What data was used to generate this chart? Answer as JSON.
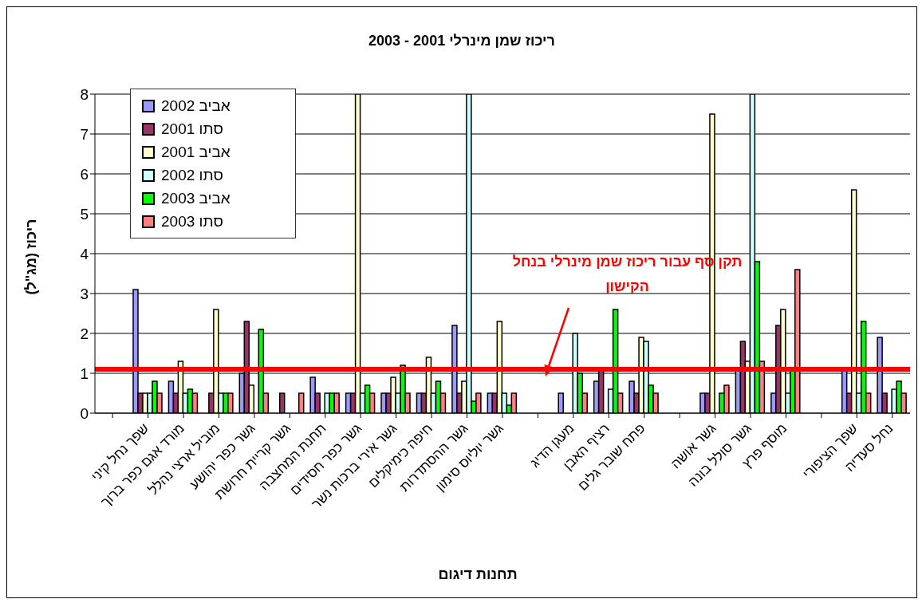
{
  "chart_data": {
    "type": "bar",
    "title": "ריכוז שמן מינרלי 2001 - 2003",
    "xlabel": "תחנות דיגום",
    "ylabel": "ריכוז (מג\"ל)",
    "categories": [
      null,
      "שפך נחל קיני",
      "מורד אגם כפר ברוך",
      "מוביל ארצי נהלל",
      "גשר כפר יהושע",
      "גשר קריית חרושת",
      "תחנת המחצבה",
      "גשר כפר חסידים",
      "גשר אירי ברכות נשר",
      "חיפה כימיקלים",
      "גשר ההסתדרות",
      "גשר יוליוס סימון",
      null,
      "מעגן הדיג",
      "רציף האבן",
      "פתח שובר גלים",
      null,
      "גשר אושה",
      "גשר סולל בונה",
      "מוסף פרץ",
      null,
      "שפך הציפורי",
      "נחל סעדיה"
    ],
    "series": [
      {
        "name": "אביב 2002",
        "color": "#9999ff",
        "values": [
          null,
          3.1,
          0.8,
          null,
          1.0,
          null,
          0.9,
          0.5,
          0.5,
          0.5,
          2.2,
          0.5,
          null,
          0.5,
          0.8,
          0.8,
          null,
          0.5,
          1.1,
          0.5,
          null,
          1.1,
          1.9
        ]
      },
      {
        "name": "סתו 2001",
        "color": "#993366",
        "values": [
          null,
          0.5,
          0.5,
          0.5,
          2.3,
          0.5,
          0.5,
          0.5,
          0.5,
          0.5,
          0.5,
          0.5,
          null,
          null,
          1.1,
          0.5,
          null,
          0.5,
          1.8,
          2.2,
          null,
          0.5,
          0.5
        ]
      },
      {
        "name": "אביב 2001",
        "color": "#ffffcc",
        "values": [
          null,
          0.5,
          1.3,
          2.6,
          0.7,
          null,
          null,
          8,
          0.9,
          1.4,
          0.8,
          2.3,
          null,
          null,
          null,
          1.9,
          null,
          7.5,
          1.3,
          2.6,
          null,
          5.6,
          null
        ]
      },
      {
        "name": "סתו 2002",
        "color": "#ccffff",
        "values": [
          null,
          0.5,
          0.5,
          0.5,
          null,
          null,
          0.5,
          0.5,
          0.5,
          0.5,
          8,
          0.5,
          null,
          2.0,
          0.6,
          1.8,
          null,
          null,
          8,
          0.5,
          null,
          0.5,
          0.6
        ]
      },
      {
        "name": "אביב 2003",
        "color": "#00ff00",
        "values": [
          null,
          0.8,
          0.6,
          0.5,
          2.1,
          null,
          0.5,
          0.7,
          1.2,
          0.8,
          0.3,
          0.2,
          null,
          1.0,
          2.6,
          0.7,
          null,
          0.5,
          3.8,
          1.1,
          null,
          2.3,
          0.8
        ]
      },
      {
        "name": "סתו 2003",
        "color": "#ff8080",
        "values": [
          null,
          0.5,
          0.5,
          0.5,
          0.5,
          0.5,
          0.5,
          0.5,
          0.5,
          0.5,
          0.5,
          0.5,
          null,
          0.5,
          0.5,
          0.5,
          null,
          0.7,
          1.3,
          3.6,
          null,
          0.5,
          0.5
        ]
      }
    ],
    "ylim": [
      0,
      8
    ],
    "yticks": [
      0,
      1,
      2,
      3,
      4,
      5,
      6,
      7,
      8
    ],
    "grid": "y",
    "legend": "top left",
    "ref_lines": [
      {
        "axis": "y",
        "value": 1.1,
        "label": "תקן סף עבור ריכוז שמן מינרלי בנחל הקישון",
        "color": "#ff0000"
      }
    ]
  }
}
